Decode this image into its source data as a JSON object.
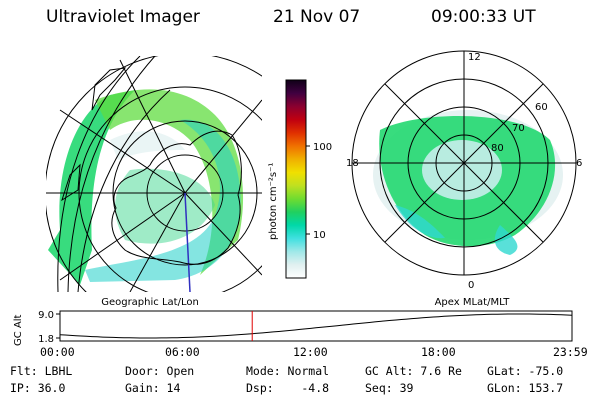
{
  "header": {
    "instrument": "Ultraviolet Imager",
    "date": "21 Nov 07",
    "time": "09:00:33 UT"
  },
  "colorbar": {
    "unit_label": "photon cm⁻²s⁻¹",
    "ticks": [
      "100",
      "10"
    ],
    "colors": [
      "#ffffff",
      "#e0f0f0",
      "#a0e8e8",
      "#40e0e0",
      "#00d8a8",
      "#20d060",
      "#70dc30",
      "#c0e020",
      "#f0e000",
      "#f0b000",
      "#f07000",
      "#e03000",
      "#c00010",
      "#8a0030",
      "#400040",
      "#100018"
    ]
  },
  "geo_map": {
    "caption": "Geographic Lat/Lon"
  },
  "polar_plot": {
    "caption": "Apex MLat/MLT",
    "mlt_labels": [
      "12",
      "18",
      "6",
      "0"
    ],
    "lat_labels": [
      "60",
      "70",
      "80"
    ]
  },
  "altitude_plot": {
    "ylabel": "GC Alt",
    "yticks": [
      "9.0",
      "1.8"
    ],
    "xticks": [
      "00:00",
      "06:00",
      "12:00",
      "18:00",
      "23:59"
    ],
    "current_time_hours": 9.01
  },
  "status": {
    "filter": "Flt: LBHL",
    "door": "Door: Open",
    "mode": "Mode: Normal",
    "gc_alt": "GC Alt: 7.6 Re",
    "glat": "GLat: -75.0",
    "ip": "IP: 36.0",
    "gain": "Gain: 14",
    "dsp": "Dsp:    -4.8",
    "seq": "Seq: 39",
    "glon": "GLon: 153.7"
  },
  "accent_colors": {
    "marker": "#e00000",
    "meridian": "#3030c0"
  }
}
